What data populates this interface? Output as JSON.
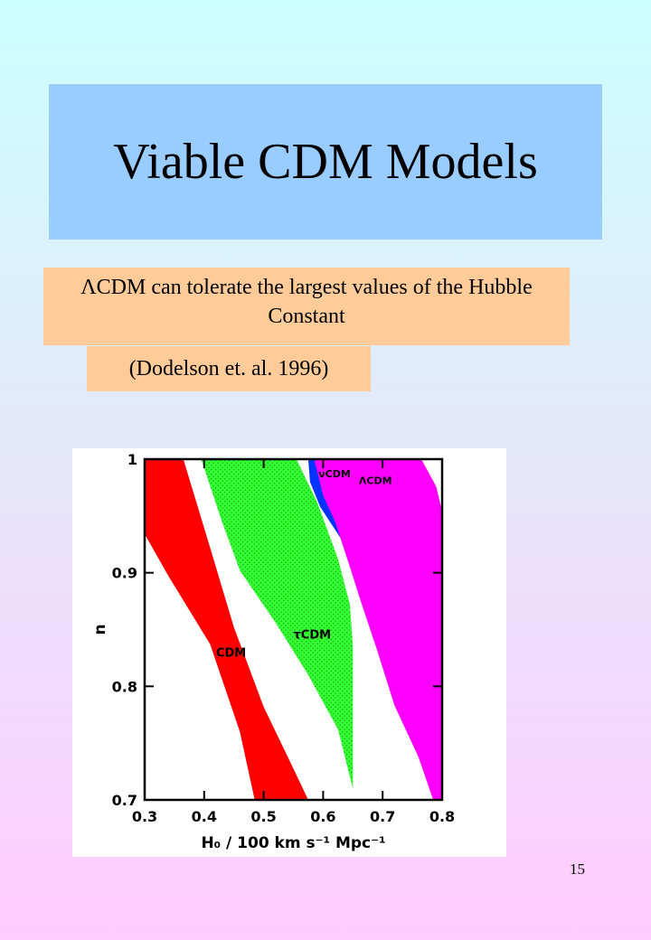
{
  "slide": {
    "title": "Viable CDM Models",
    "note": "ΛCDM can tolerate the largest values of the Hubble Constant",
    "citation": "(Dodelson et. al. 1996)",
    "page_number": "15"
  },
  "chart_data": {
    "type": "area",
    "title": "",
    "xlabel": "H₀ / 100 km s⁻¹ Mpc⁻¹",
    "ylabel": "n",
    "xlim": [
      0.3,
      0.8
    ],
    "ylim": [
      0.7,
      1.0
    ],
    "x_ticks": [
      "0.3",
      "0.4",
      "0.5",
      "0.6",
      "0.7",
      "0.8"
    ],
    "y_ticks": [
      "0.7",
      "0.8",
      "0.9",
      "1"
    ],
    "grid": false,
    "series": [
      {
        "name": "CDM",
        "color": "#ff0000",
        "label_at": [
          0.42,
          0.826
        ],
        "polygon": [
          [
            0.3,
            1.0
          ],
          [
            0.365,
            1.0
          ],
          [
            0.41,
            0.922
          ],
          [
            0.45,
            0.852
          ],
          [
            0.5,
            0.782
          ],
          [
            0.545,
            0.733
          ],
          [
            0.575,
            0.7
          ],
          [
            0.485,
            0.7
          ],
          [
            0.46,
            0.76
          ],
          [
            0.41,
            0.837
          ],
          [
            0.34,
            0.897
          ],
          [
            0.3,
            0.934
          ]
        ]
      },
      {
        "name": "τCDM",
        "color": "#33ff33",
        "label_at": [
          0.55,
          0.842
        ],
        "polygon": [
          [
            0.395,
            1.0
          ],
          [
            0.555,
            1.0
          ],
          [
            0.59,
            0.962
          ],
          [
            0.625,
            0.912
          ],
          [
            0.645,
            0.872
          ],
          [
            0.65,
            0.834
          ],
          [
            0.65,
            0.71
          ],
          [
            0.625,
            0.762
          ],
          [
            0.575,
            0.81
          ],
          [
            0.52,
            0.856
          ],
          [
            0.46,
            0.902
          ],
          [
            0.43,
            0.945
          ]
        ]
      },
      {
        "name": "νCDM",
        "color": "#0033ff",
        "label_at": [
          0.592,
          0.984
        ],
        "polygon": [
          [
            0.575,
            1.0
          ],
          [
            0.585,
            1.0
          ],
          [
            0.61,
            0.972
          ],
          [
            0.64,
            0.935
          ],
          [
            0.63,
            0.93
          ],
          [
            0.595,
            0.958
          ],
          [
            0.578,
            0.98
          ]
        ]
      },
      {
        "name": "ΛCDM",
        "color": "#ff00ff",
        "label_at": [
          0.66,
          0.978
        ],
        "polygon": [
          [
            0.585,
            1.0
          ],
          [
            0.765,
            1.0
          ],
          [
            0.79,
            0.976
          ],
          [
            0.8,
            0.954
          ],
          [
            0.8,
            0.7
          ],
          [
            0.785,
            0.7
          ],
          [
            0.76,
            0.738
          ],
          [
            0.72,
            0.783
          ],
          [
            0.69,
            0.833
          ],
          [
            0.665,
            0.872
          ],
          [
            0.645,
            0.905
          ],
          [
            0.62,
            0.945
          ],
          [
            0.6,
            0.968
          ]
        ]
      }
    ]
  }
}
